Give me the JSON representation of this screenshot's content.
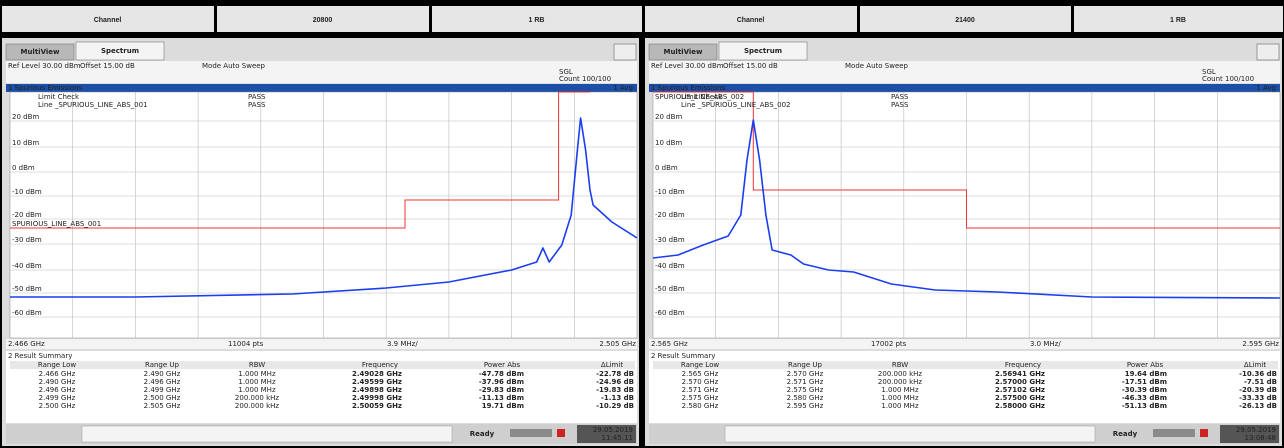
{
  "header": {
    "cells": [
      "Channel",
      "20800",
      "1 RB",
      "Channel",
      "21400",
      "1 RB"
    ]
  },
  "panels": [
    {
      "tabs": [
        "MultiView",
        "Spectrum"
      ],
      "ref_level": "Ref Level 30.00 dBm",
      "offset": "Offset 15.00 dB",
      "mode": "Mode Auto Sweep",
      "sgl": "SGL",
      "count": "Count 100/100",
      "window_title": "1 Spurious Emissions",
      "avg": "1 Avg",
      "limit_check": "Limit Check",
      "limit_status": "PASS",
      "line_name": "Line _SPURIOUS_LINE_ABS_001",
      "line_status": "PASS",
      "limit_label": "SPURIOUS_LINE_ABS_001",
      "y_labels": [
        "20 dBm",
        "10 dBm",
        "0 dBm",
        "-10 dBm",
        "-20 dBm",
        "-30 dBm",
        "-40 dBm",
        "-50 dBm",
        "-60 dBm"
      ],
      "x_start": "2.466 GHz",
      "points": "11004 pts",
      "span": "3.9 MHz/",
      "x_stop": "2.505 GHz",
      "summary_title": "2 Result Summary",
      "summary_headers": [
        "Range Low",
        "Range Up",
        "RBW",
        "Frequency",
        "Power Abs",
        "ΔLimit"
      ],
      "summary_rows": [
        [
          "2.466 GHz",
          "2.490 GHz",
          "1.000 MHz",
          "2.49028 GHz",
          "-47.78 dBm",
          "-22.78 dB"
        ],
        [
          "2.490 GHz",
          "2.496 GHz",
          "1.000 MHz",
          "2.49599 GHz",
          "-37.96 dBm",
          "-24.96 dB"
        ],
        [
          "2.496 GHz",
          "2.499 GHz",
          "1.000 MHz",
          "2.49898 GHz",
          "-29.83 dBm",
          "-19.83 dB"
        ],
        [
          "2.499 GHz",
          "2.500 GHz",
          "200.000 kHz",
          "2.49998 GHz",
          "-11.13 dBm",
          "-1.13 dB"
        ],
        [
          "2.500 GHz",
          "2.505 GHz",
          "200.000 kHz",
          "2.50059 GHz",
          "19.71 dBm",
          "-10.29 dB"
        ]
      ],
      "status": "Ready",
      "date": "29.05.2019",
      "time": "11:45:11"
    },
    {
      "tabs": [
        "MultiView",
        "Spectrum"
      ],
      "ref_level": "Ref Level 30.00 dBm",
      "offset": "Offset 15.00 dB",
      "mode": "Mode Auto Sweep",
      "sgl": "SGL",
      "count": "Count 100/100",
      "window_title": "1 Spurious Emissions",
      "avg": "1 Avg",
      "limit_check": "Limit Check",
      "limit_status": "PASS",
      "line_name": "Line _SPURIOUS_LINE_ABS_002",
      "line_status": "PASS",
      "limit_label": "SPURIOUS_LINE_ABS_002",
      "y_labels": [
        "20 dBm",
        "10 dBm",
        "0 dBm",
        "-10 dBm",
        "-20 dBm",
        "-30 dBm",
        "-40 dBm",
        "-50 dBm",
        "-60 dBm"
      ],
      "x_start": "2.565 GHz",
      "points": "17002 pts",
      "span": "3.0 MHz/",
      "x_stop": "2.595 GHz",
      "summary_title": "2 Result Summary",
      "summary_headers": [
        "Range Low",
        "Range Up",
        "RBW",
        "Frequency",
        "Power Abs",
        "ΔLimit"
      ],
      "summary_rows": [
        [
          "2.565 GHz",
          "2.570 GHz",
          "200.000 kHz",
          "2.56941 GHz",
          "19.64 dBm",
          "-10.36 dB"
        ],
        [
          "2.570 GHz",
          "2.571 GHz",
          "200.000 kHz",
          "2.57000 GHz",
          "-17.51 dBm",
          "-7.51 dB"
        ],
        [
          "2.571 GHz",
          "2.575 GHz",
          "1.000 MHz",
          "2.57102 GHz",
          "-30.39 dBm",
          "-20.39 dB"
        ],
        [
          "2.575 GHz",
          "2.580 GHz",
          "1.000 MHz",
          "2.57500 GHz",
          "-46.33 dBm",
          "-33.33 dB"
        ],
        [
          "2.580 GHz",
          "2.595 GHz",
          "1.000 MHz",
          "2.58000 GHz",
          "-51.13 dBm",
          "-26.13 dB"
        ]
      ],
      "status": "Ready",
      "date": "29.05.2019",
      "time": "13:08:48"
    }
  ]
}
